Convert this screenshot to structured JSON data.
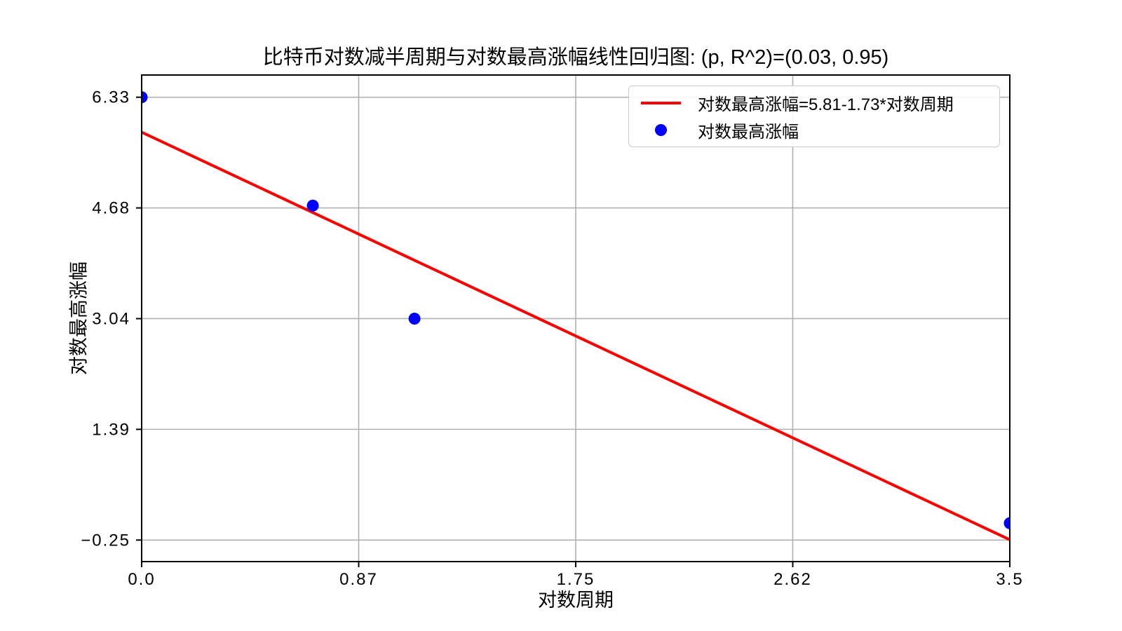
{
  "figure": {
    "background": "#ffffff"
  },
  "chart_data": {
    "type": "scatter",
    "title": "比特币对数减半周期与对数最高涨幅线性回归图: (p, R^2)=(0.03, 0.95)",
    "xlabel": "对数周期",
    "ylabel": "对数最高涨幅",
    "xlim": [
      0,
      3.5
    ],
    "ylim": [
      -0.57,
      6.66
    ],
    "xticks": [
      0,
      0.875,
      1.75,
      2.625,
      3.5
    ],
    "xtick_labels": [
      "0.0",
      "0.87",
      "1.75",
      "2.62",
      "3.5"
    ],
    "yticks": [
      -0.25,
      1.395,
      3.04,
      4.685,
      6.33
    ],
    "ytick_labels": [
      "−0.25",
      "1.39",
      "3.04",
      "4.68",
      "6.33"
    ],
    "grid": true,
    "legend_position": "upper right",
    "stats": {
      "p": 0.03,
      "r_squared": 0.95
    },
    "series": [
      {
        "name": "对数最高涨幅=5.81-1.73*对数周期",
        "type": "line",
        "color": "#ff0000",
        "line": {
          "intercept": 5.81,
          "slope": -1.73,
          "x_start": 0,
          "x_end": 3.5
        }
      },
      {
        "name": "对数最高涨幅",
        "type": "scatter",
        "color": "#0000ff",
        "points": [
          [
            0.0,
            6.33
          ],
          [
            0.69,
            4.72
          ],
          [
            1.1,
            3.04
          ],
          [
            3.5,
            0.0
          ]
        ]
      }
    ],
    "colors": {
      "line": "#ff0000",
      "marker": "#0000ff",
      "grid": "#b0b0b0",
      "spine": "#000000",
      "tick_text": "#000000",
      "legend_border": "#cccccc",
      "background": "#ffffff"
    }
  }
}
